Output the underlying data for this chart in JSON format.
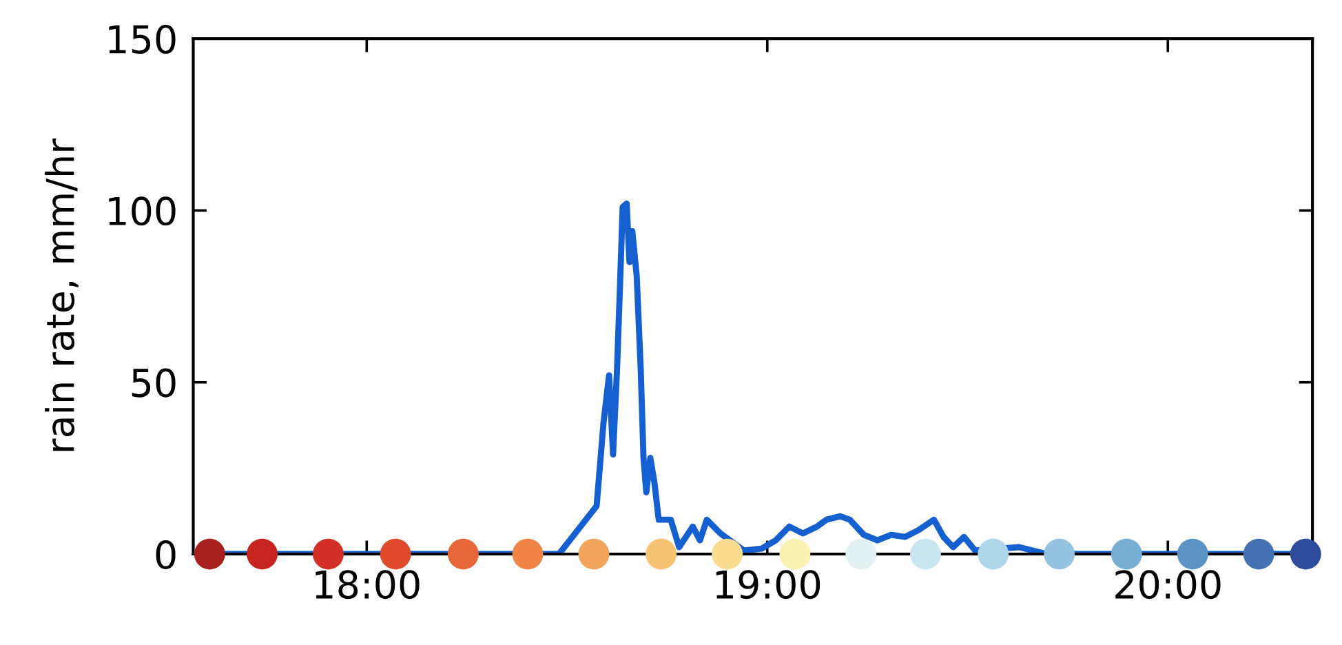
{
  "chart_data": {
    "type": "line",
    "ylabel": "rain rate, mm/hr",
    "xlim": [
      17.567,
      20.361
    ],
    "ylim": [
      0,
      150
    ],
    "xticks": [
      {
        "value": 18,
        "label": "18:00"
      },
      {
        "value": 19,
        "label": "19:00"
      },
      {
        "value": 20,
        "label": "20:00"
      }
    ],
    "yticks": [
      0,
      50,
      100,
      150
    ],
    "grid": false,
    "series": [
      {
        "color": "#1560d0",
        "marker": "none",
        "line_style": "solid",
        "x": [
          17.608,
          18.48,
          18.574,
          18.591,
          18.605,
          18.615,
          18.625,
          18.632,
          18.639,
          18.649,
          18.656,
          18.663,
          18.674,
          18.684,
          18.691,
          18.698,
          18.708,
          18.718,
          18.729,
          18.759,
          18.78,
          18.814,
          18.832,
          18.849,
          18.883,
          18.907,
          18.942,
          18.986,
          19.021,
          19.055,
          19.089,
          19.124,
          19.148,
          19.182,
          19.206,
          19.241,
          19.275,
          19.309,
          19.344,
          19.378,
          19.416,
          19.44,
          19.464,
          19.491,
          19.519,
          19.629,
          19.663,
          19.698,
          20.344
        ],
        "values": [
          0,
          0,
          14,
          38,
          52,
          29,
          54,
          77,
          101,
          102,
          85,
          94,
          81,
          54,
          28,
          18,
          28,
          21,
          10,
          10,
          2,
          8,
          4,
          10,
          6,
          4,
          1,
          1.6,
          4,
          8,
          6,
          8,
          10,
          11,
          10,
          5.6,
          4,
          5.6,
          5,
          7,
          10,
          5,
          2,
          5,
          1,
          2,
          1,
          0,
          0
        ]
      },
      {
        "type": "scatter",
        "marker": "circle",
        "x": [
          17.608,
          17.739,
          17.904,
          18.072,
          18.241,
          18.402,
          18.567,
          18.735,
          18.9,
          19.069,
          19.234,
          19.395,
          19.564,
          19.729,
          19.897,
          20.062,
          20.227,
          20.344
        ],
        "values": [
          0,
          0,
          0,
          0,
          0,
          0,
          0,
          0,
          0,
          0,
          0,
          0,
          0,
          0,
          0,
          0,
          0,
          0
        ],
        "colors": [
          "#a8201e",
          "#c8241f",
          "#d42f26",
          "#df4a2c",
          "#e8673a",
          "#ef8445",
          "#f2a55a",
          "#f6c373",
          "#f9dc8e",
          "#fbf1b0",
          "#e3f1f2",
          "#c9e5ef",
          "#aed6e8",
          "#94c4e0",
          "#76add3",
          "#5b93c5",
          "#4471b2",
          "#2e4c9c"
        ]
      }
    ]
  }
}
